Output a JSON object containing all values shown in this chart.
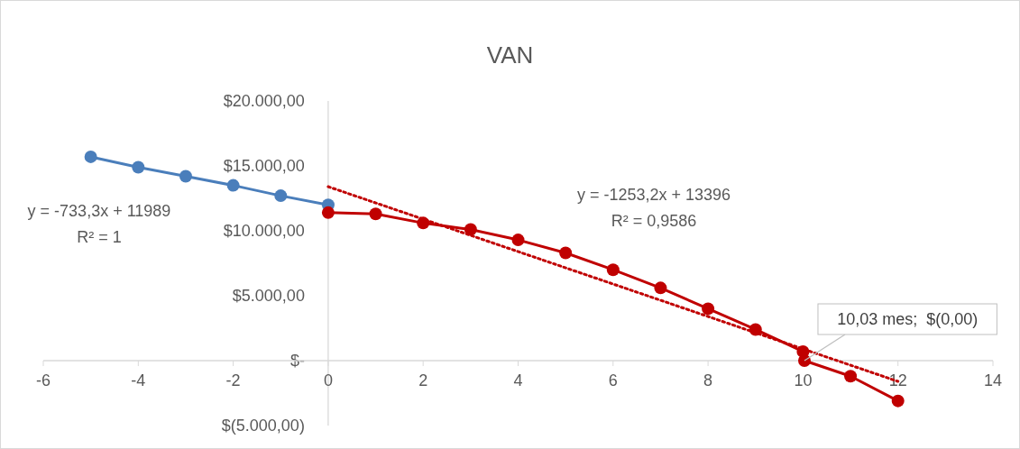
{
  "chart_data": {
    "type": "line",
    "title": "VAN",
    "xlim": [
      -6,
      14
    ],
    "xticks": [
      -6,
      -4,
      -2,
      0,
      2,
      4,
      6,
      8,
      10,
      12,
      14
    ],
    "ylim": [
      -5000,
      20000
    ],
    "yticks": [
      {
        "value": -5000,
        "label": "$(5.000,00)"
      },
      {
        "value": 0,
        "label": "$-"
      },
      {
        "value": 5000,
        "label": "$5.000,00"
      },
      {
        "value": 10000,
        "label": "$10.000,00"
      },
      {
        "value": 15000,
        "label": "$15.000,00"
      },
      {
        "value": 20000,
        "label": "$20.000,00"
      }
    ],
    "grid": false,
    "marker": "circle",
    "line_style": "solid",
    "series": [
      {
        "color": "#4a7ebb",
        "x": [
          -5,
          -4,
          -3,
          -2,
          -1,
          0
        ],
        "values": [
          15700,
          14900,
          14200,
          13500,
          12700,
          12000
        ]
      },
      {
        "color": "#c00000",
        "x": [
          0,
          1,
          2,
          3,
          4,
          5,
          6,
          7,
          8,
          9,
          10,
          10.03,
          11,
          12
        ],
        "values": [
          11400,
          11300,
          10600,
          10100,
          9300,
          8300,
          7000,
          5600,
          4000,
          2400,
          700,
          0,
          -1200,
          -3100
        ]
      },
      {
        "type": "line",
        "color": "#c00000",
        "marker": "none",
        "line_style": "dotted",
        "x": [
          0,
          12
        ],
        "values": [
          13400,
          -1600
        ]
      }
    ],
    "annotations": [
      "y = -733,3x + 11989\nR² = 1",
      "y = -1253,2x + 13396\nR² = 0,9586",
      {
        "text": "10,03 mes;  $(0,00)",
        "x": 10.03,
        "y": 0
      }
    ]
  }
}
